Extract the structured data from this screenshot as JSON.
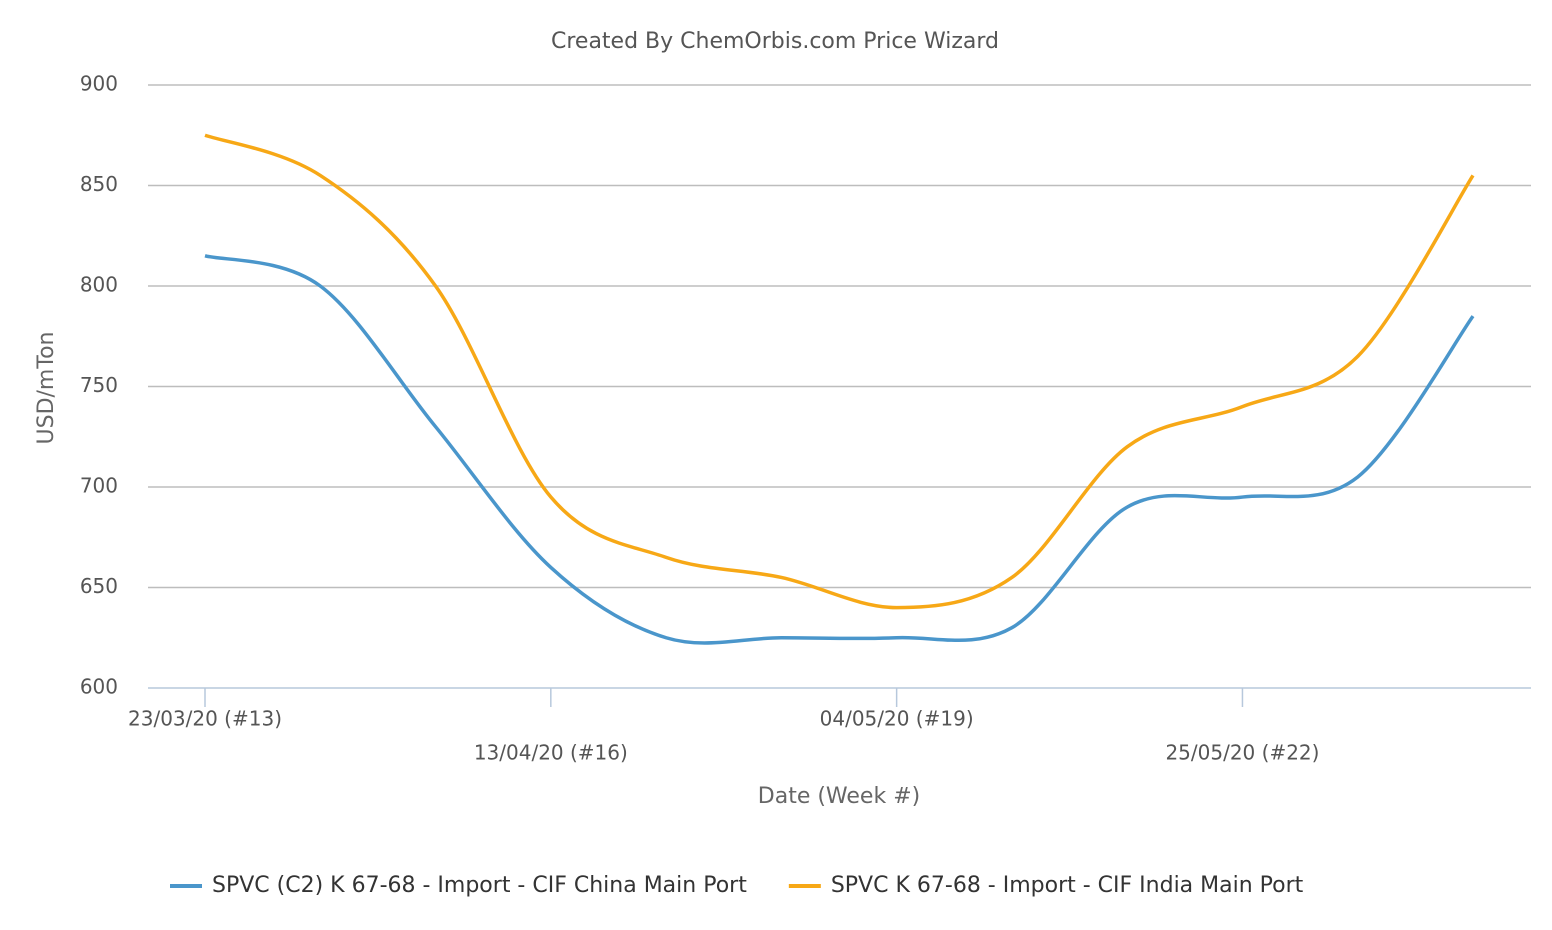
{
  "chart_data": {
    "type": "line",
    "title": "Created By ChemOrbis.com Price Wizard",
    "x_label": "Date (Week #)",
    "y_label": "USD/mTon",
    "categories": [
      "23/03/20 (#13)",
      null,
      null,
      "13/04/20 (#16)",
      null,
      null,
      "04/05/20 (#19)",
      null,
      null,
      "25/05/20 (#22)",
      null,
      null
    ],
    "series": [
      {
        "name": "SPVC (C2) K 67-68 - Import - CIF China Main Port",
        "color": "#4a96cb",
        "values": [
          815,
          800,
          730,
          660,
          625,
          625,
          625,
          630,
          690,
          695,
          705,
          785
        ]
      },
      {
        "name": "SPVC K 67-68 - Import - CIF India Main Port",
        "color": "#f7a816",
        "values": [
          875,
          855,
          800,
          695,
          665,
          655,
          640,
          655,
          720,
          740,
          765,
          855
        ]
      }
    ],
    "ylim": [
      600,
      900
    ],
    "yticks": [
      600,
      650,
      700,
      750,
      800,
      850,
      900
    ],
    "grid": true,
    "legend": "bottom"
  }
}
